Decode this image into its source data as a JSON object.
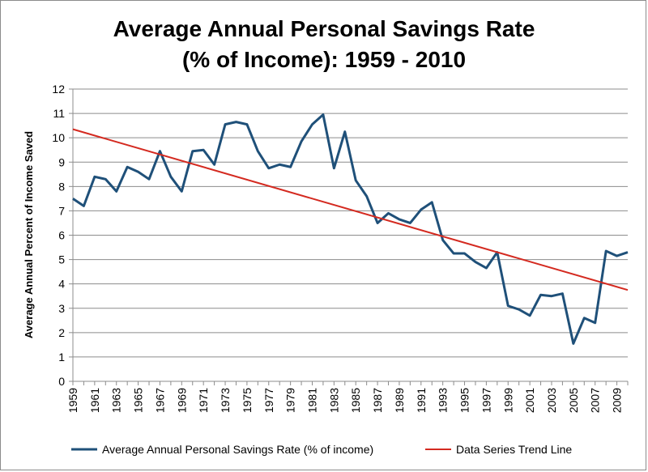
{
  "chart_data": {
    "type": "line",
    "title_line1": "Average Annual Personal Savings Rate",
    "title_line2": "(% of Income): 1959 - 2010",
    "ylabel": "Average Annual Percent of Income Saved",
    "xlabel": "",
    "ylim": [
      0,
      12
    ],
    "yticks": [
      0,
      1,
      2,
      3,
      4,
      5,
      6,
      7,
      8,
      9,
      10,
      11,
      12
    ],
    "xlim": [
      1959,
      2010
    ],
    "xtick_labels": [
      "1959",
      "1961",
      "1963",
      "1965",
      "1967",
      "1969",
      "1971",
      "1973",
      "1975",
      "1977",
      "1979",
      "1981",
      "1983",
      "1985",
      "1987",
      "1989",
      "1991",
      "1993",
      "1995",
      "1997",
      "1999",
      "2001",
      "2003",
      "2005",
      "2007",
      "2009"
    ],
    "grid": "horizontal",
    "legend_position": "bottom",
    "series": [
      {
        "name": "Average Annual Personal Savings Rate (% of income)",
        "color": "#1f5079",
        "x": [
          1959,
          1960,
          1961,
          1962,
          1963,
          1964,
          1965,
          1966,
          1967,
          1968,
          1969,
          1970,
          1971,
          1972,
          1973,
          1974,
          1975,
          1976,
          1977,
          1978,
          1979,
          1980,
          1981,
          1982,
          1983,
          1984,
          1985,
          1986,
          1987,
          1988,
          1989,
          1990,
          1991,
          1992,
          1993,
          1994,
          1995,
          1996,
          1997,
          1998,
          1999,
          2000,
          2001,
          2002,
          2003,
          2004,
          2005,
          2006,
          2007,
          2008,
          2009,
          2010
        ],
        "values": [
          7.5,
          7.2,
          8.4,
          8.3,
          7.8,
          8.8,
          8.6,
          8.3,
          9.45,
          8.4,
          7.8,
          9.45,
          9.5,
          8.9,
          10.55,
          10.65,
          10.55,
          9.45,
          8.75,
          8.9,
          8.8,
          9.85,
          10.55,
          10.95,
          8.75,
          10.25,
          8.25,
          7.6,
          6.5,
          6.9,
          6.65,
          6.5,
          7.05,
          7.35,
          5.8,
          5.25,
          5.25,
          4.9,
          4.65,
          5.3,
          3.1,
          2.95,
          2.7,
          3.55,
          3.5,
          3.6,
          1.55,
          2.6,
          2.4,
          5.35,
          5.15,
          5.3
        ]
      },
      {
        "name": "Data Series Trend Line",
        "color": "#d42a20",
        "x": [
          1959,
          2010
        ],
        "values": [
          10.35,
          3.75
        ]
      }
    ]
  }
}
